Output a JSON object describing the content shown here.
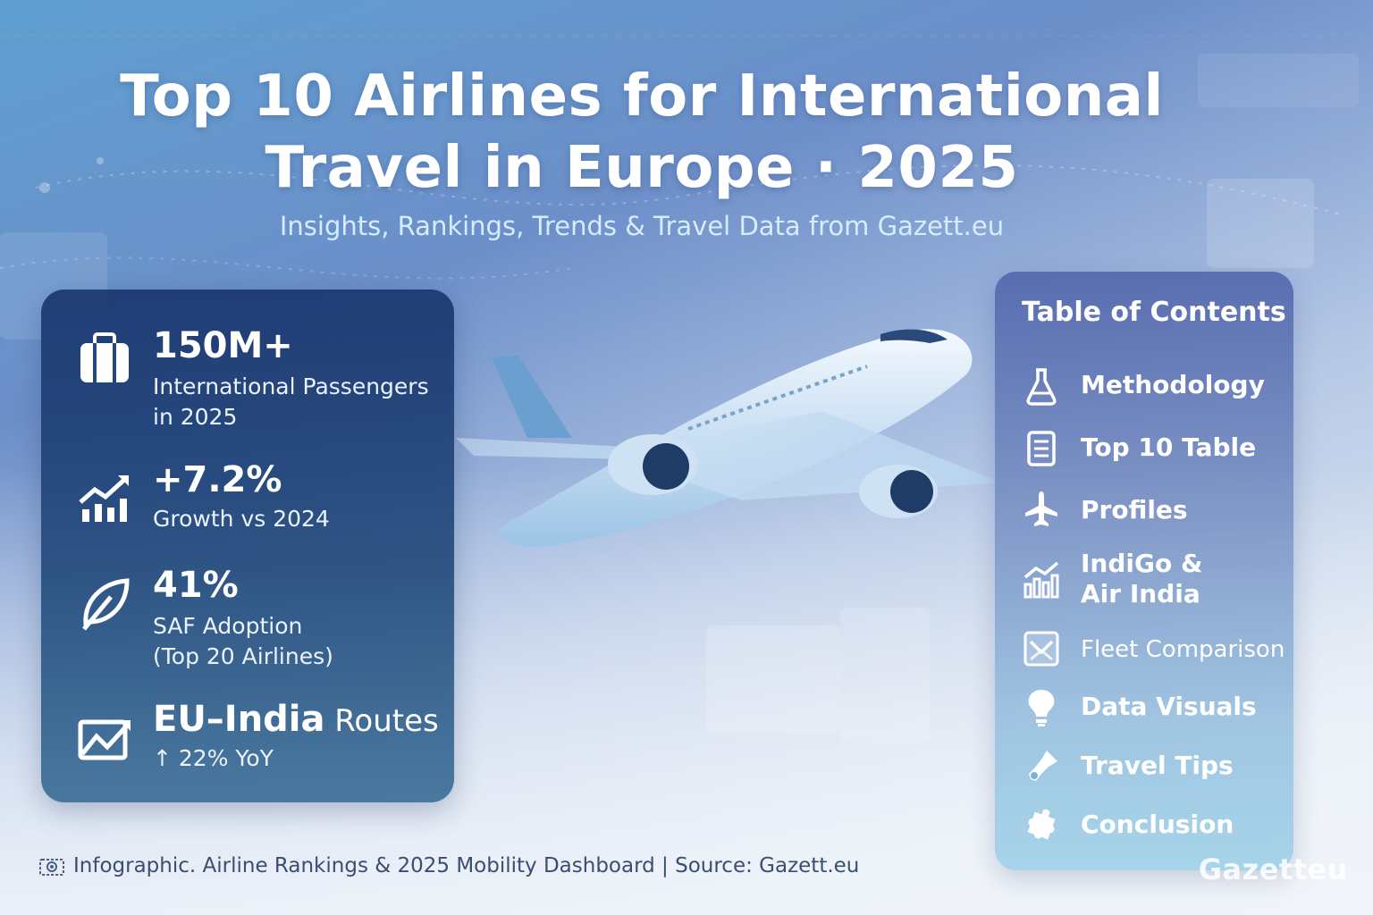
{
  "header": {
    "title_line1": "Top 10 Airlines for International",
    "title_line2": "Travel in Europe · 2025",
    "subtitle": "Insights, Rankings, Trends & Travel Data from Gazett.eu"
  },
  "stats": [
    {
      "icon": "suitcase-icon",
      "value": "150M+",
      "label_line1": "International Passengers",
      "label_line2": "in 2025"
    },
    {
      "icon": "growth-chart-icon",
      "value": "+7.2%",
      "label_line1": "Growth vs 2024"
    },
    {
      "icon": "leaf-icon",
      "value": "41%",
      "label_line1": "SAF Adoption",
      "label_line2": "(Top 20 Airlines)"
    },
    {
      "icon": "route-map-icon",
      "value": "EU–India",
      "value_suffix": " Routes",
      "label_line1": "↑ 22% YoY"
    }
  ],
  "toc": {
    "title": "Table of Contents",
    "items": [
      {
        "icon": "flask-icon",
        "label": "Methodology"
      },
      {
        "icon": "document-icon",
        "label": "Top 10 Table"
      },
      {
        "icon": "airplane-icon",
        "label": "Profiles"
      },
      {
        "icon": "bar-chart-icon",
        "label_line1": "IndiGo &",
        "label_line2": "Air India"
      },
      {
        "icon": "comparison-icon",
        "label": "Fleet Comparison"
      },
      {
        "icon": "lightbulb-icon",
        "label": "Data Visuals"
      },
      {
        "icon": "pin-icon",
        "label": "Travel Tips"
      },
      {
        "icon": "puzzle-icon",
        "label": "Conclusion"
      }
    ]
  },
  "footer": {
    "text": "Infographic. Airline Rankings & 2025 Mobility Dashboard  |  Source: Gazett.eu",
    "icon": "camera-icon"
  },
  "watermark": "Gazetteu",
  "colors": {
    "stats_panel": "#1f3f78",
    "toc_panel": "#6b86c2",
    "title_text": "#ffffff",
    "subtitle_text": "#d6ecff",
    "footer_text": "#3a4d72"
  }
}
